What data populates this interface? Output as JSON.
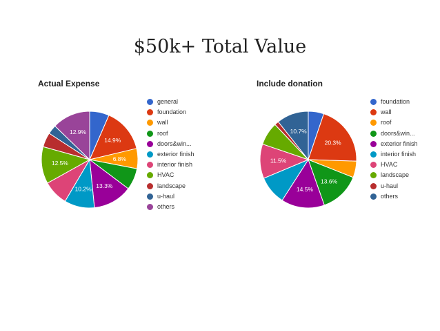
{
  "slide": {
    "title": "$50k+ Total Value"
  },
  "chart_data": [
    {
      "type": "pie",
      "title": "Actual Expense",
      "legend_position": "right",
      "categories": [
        "general",
        "foundation",
        "wall",
        "roof",
        "doors&win...",
        "exterior finish",
        "interior finish",
        "HVAC",
        "landscape",
        "u-haul",
        "others"
      ],
      "values": [
        6.6,
        14.9,
        6.8,
        7.3,
        13.3,
        10.2,
        8.5,
        12.5,
        4.9,
        3.1,
        12.9
      ],
      "data_labels": [
        "",
        "14.9%",
        "6.8%",
        "",
        "13.3%",
        "10.2%",
        "",
        "12.5%",
        "",
        "",
        "12.9%"
      ],
      "colors": [
        "#3366cc",
        "#dc3912",
        "#ff9900",
        "#109618",
        "#990099",
        "#0099c6",
        "#dd4477",
        "#66aa00",
        "#b82e2e",
        "#316395",
        "#994499"
      ]
    },
    {
      "type": "pie",
      "title": "Include donation",
      "legend_position": "right",
      "categories": [
        "foundation",
        "wall",
        "roof",
        "doors&win...",
        "exterior finish",
        "interior finish",
        "HVAC",
        "landscape",
        "u-haul",
        "others"
      ],
      "values": [
        5.2,
        20.3,
        5.5,
        13.6,
        14.5,
        9.6,
        11.5,
        7.7,
        1.4,
        10.7
      ],
      "data_labels": [
        "",
        "20.3%",
        "",
        "13.6%",
        "14.5%",
        "",
        "11.5%",
        "",
        "",
        "10.7%"
      ],
      "colors": [
        "#3366cc",
        "#dc3912",
        "#ff9900",
        "#109618",
        "#990099",
        "#0099c6",
        "#dd4477",
        "#66aa00",
        "#b82e2e",
        "#316395"
      ]
    }
  ]
}
